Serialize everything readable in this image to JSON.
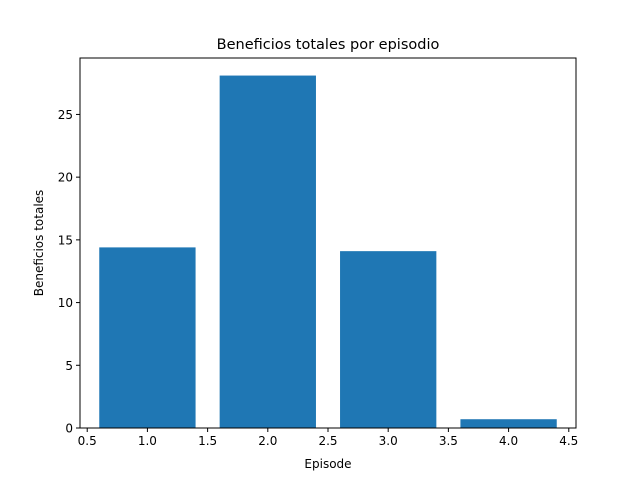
{
  "chart_data": {
    "type": "bar",
    "title": "Beneficios totales por episodio",
    "xlabel": "Episode",
    "ylabel": "Beneficios totales",
    "x": [
      1,
      2,
      3,
      4
    ],
    "values": [
      14.4,
      28.1,
      14.1,
      0.7
    ],
    "bar_width": 0.8,
    "xlim": [
      0.44,
      4.56
    ],
    "ylim": [
      0,
      29.5
    ],
    "xticks": [
      0.5,
      1.0,
      1.5,
      2.0,
      2.5,
      3.0,
      3.5,
      4.0,
      4.5
    ],
    "xtick_labels": [
      "0.5",
      "1.0",
      "1.5",
      "2.0",
      "2.5",
      "3.0",
      "3.5",
      "4.0",
      "4.5"
    ],
    "yticks": [
      0,
      5,
      10,
      15,
      20,
      25
    ],
    "ytick_labels": [
      "0",
      "5",
      "10",
      "15",
      "20",
      "25"
    ],
    "bar_color": "#1f77b4",
    "grid": false,
    "legend": false
  }
}
